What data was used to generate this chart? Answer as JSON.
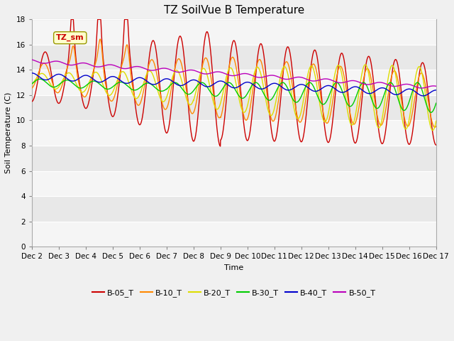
{
  "title": "TZ SoilVue B Temperature",
  "xlabel": "Time",
  "ylabel": "Soil Temperature (C)",
  "ylim": [
    0,
    18
  ],
  "yticks": [
    0,
    2,
    4,
    6,
    8,
    10,
    12,
    14,
    16,
    18
  ],
  "x_labels": [
    "Dec 2",
    "Dec 3",
    "Dec 4",
    "Dec 5",
    "Dec 6",
    "Dec 7",
    "Dec 8",
    "Dec 9",
    "Dec 10",
    "Dec 11",
    "Dec 12",
    "Dec 13",
    "Dec 14",
    "Dec 15",
    "Dec 16",
    "Dec 17"
  ],
  "annotation_label": "TZ_sm",
  "legend_labels": [
    "B-05_T",
    "B-10_T",
    "B-20_T",
    "B-30_T",
    "B-40_T",
    "B-50_T"
  ],
  "legend_colors": [
    "#cc0000",
    "#ff8800",
    "#dddd00",
    "#00cc00",
    "#0000cc",
    "#bb00bb"
  ],
  "bg_color": "#f0f0f0",
  "plot_bg_color": "#e8e8e8",
  "grid_color": "#ffffff",
  "title_fontsize": 11,
  "axis_fontsize": 8,
  "tick_fontsize": 7.5
}
